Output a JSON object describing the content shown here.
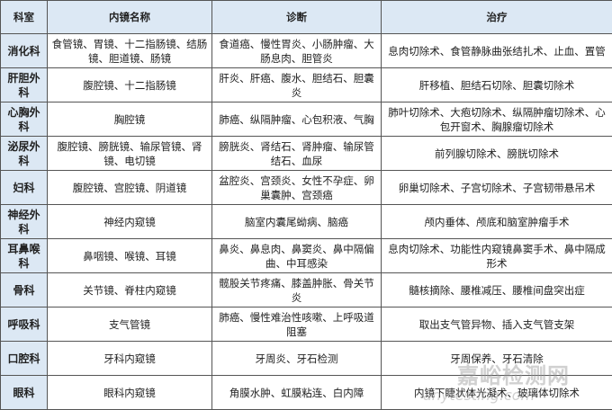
{
  "table": {
    "headers": [
      "科室",
      "内镜名称",
      "诊断",
      "治疗"
    ],
    "rows": [
      {
        "dept": "消化科",
        "scope": "食管镜、胃镜、十二指肠镜、结肠镜、胆道镜、肠镜",
        "diagnosis": "食道癌、慢性胃炎、小肠肿瘤、大肠息肉、胆管炎",
        "treatment": "息肉切除术、食管静脉曲张结扎术、止血、置管"
      },
      {
        "dept": "肝胆外科",
        "scope": "腹腔镜、十二指肠镜",
        "diagnosis": "肝炎、肝癌、腹水、胆结石、胆囊炎",
        "treatment": "肝移植、胆结石切除、胆囊切除术"
      },
      {
        "dept": "心胸外科",
        "scope": "胸腔镜",
        "diagnosis": "肺癌、纵隔肿瘤、心包积液、气胸",
        "treatment": "肺叶切除术、大疱切除术、纵隔肿瘤切除术、心包开窗术、胸腺瘤切除术"
      },
      {
        "dept": "泌尿外科",
        "scope": "腹腔镜、膀胱镜、输尿管镜、肾镜、电切镜",
        "diagnosis": "膀胱炎、肾结石、肾肿瘤、输尿管结石、血尿",
        "treatment": "前列腺切除术、膀胱切除术"
      },
      {
        "dept": "妇科",
        "scope": "腹腔镜、宫腔镜、阴道镜",
        "diagnosis": "盆腔炎、宫颈炎、女性不孕症、卵巢囊肿、宫颈癌",
        "treatment": "卵巢切除术、子宫切除术、子宫韧带悬吊术"
      },
      {
        "dept": "神经外科",
        "scope": "神经内窥镜",
        "diagnosis": "脑室内囊尾蚴病、脑癌",
        "treatment": "颅内垂体、颅底和脑室肿瘤手术"
      },
      {
        "dept": "耳鼻喉科",
        "scope": "鼻咽镜、喉镜、耳镜",
        "diagnosis": "鼻炎、鼻息肉、鼻窦炎、鼻中隔偏曲、中耳感染",
        "treatment": "息肉切除术、功能性内窥镜鼻窦手术、鼻中隔成形术"
      },
      {
        "dept": "骨科",
        "scope": "关节镜、脊柱内窥镜",
        "diagnosis": "髋股关节疼痛、膝盖肿胀、骨关节炎",
        "treatment": "髓核摘除、腰椎减压、腰椎间盘突出症"
      },
      {
        "dept": "呼吸科",
        "scope": "支气管镜",
        "diagnosis": "肺癌、慢性难治性咳嗽、上呼吸道阻塞",
        "treatment": "取出支气管异物、插入支气管支架"
      },
      {
        "dept": "口腔科",
        "scope": "牙科内窥镜",
        "diagnosis": "牙周炎、牙石检测",
        "treatment": "牙周保养、牙石清除"
      },
      {
        "dept": "眼科",
        "scope": "眼科内窥镜",
        "diagnosis": "角膜水肿、虹膜粘连、白内障",
        "treatment": "内镜下睫状体光凝术、玻璃体切除术"
      }
    ]
  },
  "watermark": {
    "text": "嘉峪检测网",
    "url": "anytesting.com"
  }
}
